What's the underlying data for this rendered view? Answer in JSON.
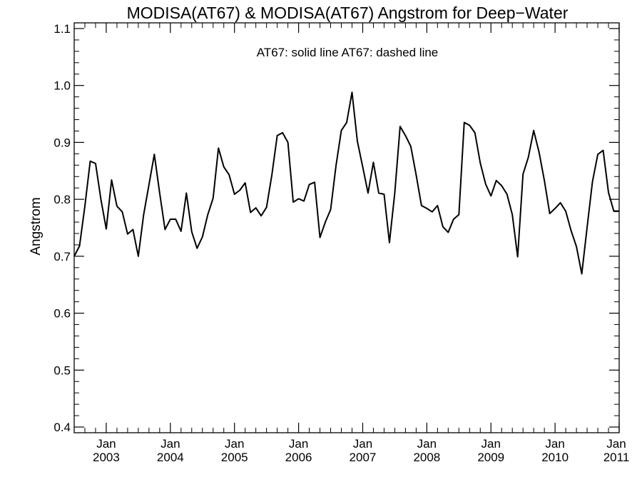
{
  "chart_data": {
    "type": "line",
    "title": "MODISA(AT67) & MODISA(AT67)  Angstrom for Deep−Water",
    "annotation": "AT67: solid line   AT67: dashed line",
    "xlabel": "",
    "ylabel": "Angstrom",
    "ylim": [
      0.39,
      1.11
    ],
    "yticks": [
      "0.4",
      "0.5",
      "0.6",
      "0.7",
      "0.8",
      "0.9",
      "1.0",
      "1.1"
    ],
    "x_start": "2002-07",
    "x_end": "2011-01",
    "xticks": [
      {
        "month": "Jan",
        "year": "2003",
        "date": "2003-01"
      },
      {
        "month": "Jan",
        "year": "2004",
        "date": "2004-01"
      },
      {
        "month": "Jan",
        "year": "2005",
        "date": "2005-01"
      },
      {
        "month": "Jan",
        "year": "2006",
        "date": "2006-01"
      },
      {
        "month": "Jan",
        "year": "2007",
        "date": "2007-01"
      },
      {
        "month": "Jan",
        "year": "2008",
        "date": "2008-01"
      },
      {
        "month": "Jan",
        "year": "2009",
        "date": "2009-01"
      },
      {
        "month": "Jan",
        "year": "2010",
        "date": "2010-01"
      },
      {
        "month": "Jan",
        "year": "2011",
        "date": "2011-01"
      }
    ],
    "grid": false,
    "line_color": "#000000",
    "series": [
      {
        "style": "solid",
        "x": [
          "2002-07",
          "2002-08",
          "2002-09",
          "2002-10",
          "2002-11",
          "2002-12",
          "2003-01",
          "2003-02",
          "2003-03",
          "2003-04",
          "2003-05",
          "2003-06",
          "2003-07",
          "2003-08",
          "2003-09",
          "2003-10",
          "2003-11",
          "2003-12",
          "2004-01",
          "2004-02",
          "2004-03",
          "2004-04",
          "2004-05",
          "2004-06",
          "2004-07",
          "2004-08",
          "2004-09",
          "2004-10",
          "2004-11",
          "2004-12",
          "2005-01",
          "2005-02",
          "2005-03",
          "2005-04",
          "2005-05",
          "2005-06",
          "2005-07",
          "2005-08",
          "2005-09",
          "2005-10",
          "2005-11",
          "2005-12",
          "2006-01",
          "2006-02",
          "2006-03",
          "2006-04",
          "2006-05",
          "2006-06",
          "2006-07",
          "2006-08",
          "2006-09",
          "2006-10",
          "2006-11",
          "2006-12",
          "2007-01",
          "2007-02",
          "2007-03",
          "2007-04",
          "2007-05",
          "2007-06",
          "2007-07",
          "2007-08",
          "2007-09",
          "2007-10",
          "2007-11",
          "2007-12",
          "2008-01",
          "2008-02",
          "2008-03",
          "2008-04",
          "2008-05",
          "2008-06",
          "2008-07",
          "2008-08",
          "2008-09",
          "2008-10",
          "2008-11",
          "2008-12",
          "2009-01",
          "2009-02",
          "2009-03",
          "2009-04",
          "2009-05",
          "2009-06",
          "2009-07",
          "2009-08",
          "2009-09",
          "2009-10",
          "2009-11",
          "2009-12",
          "2010-01",
          "2010-02",
          "2010-03",
          "2010-04",
          "2010-05",
          "2010-06",
          "2010-07",
          "2010-08",
          "2010-09",
          "2010-10",
          "2010-11",
          "2010-12",
          "2011-01"
        ],
        "y": [
          0.7,
          0.718,
          0.788,
          0.867,
          0.863,
          0.8,
          0.748,
          0.834,
          0.788,
          0.778,
          0.739,
          0.747,
          0.7,
          0.773,
          0.826,
          0.879,
          0.811,
          0.747,
          0.765,
          0.765,
          0.744,
          0.811,
          0.743,
          0.714,
          0.734,
          0.773,
          0.802,
          0.89,
          0.857,
          0.843,
          0.809,
          0.816,
          0.829,
          0.777,
          0.785,
          0.771,
          0.786,
          0.843,
          0.912,
          0.917,
          0.9,
          0.795,
          0.801,
          0.797,
          0.826,
          0.83,
          0.733,
          0.76,
          0.782,
          0.859,
          0.921,
          0.935,
          0.988,
          0.902,
          0.857,
          0.811,
          0.865,
          0.811,
          0.809,
          0.724,
          0.811,
          0.928,
          0.912,
          0.893,
          0.843,
          0.789,
          0.784,
          0.778,
          0.789,
          0.752,
          0.742,
          0.765,
          0.773,
          0.935,
          0.93,
          0.917,
          0.864,
          0.827,
          0.806,
          0.833,
          0.824,
          0.809,
          0.773,
          0.699,
          0.844,
          0.874,
          0.921,
          0.883,
          0.833,
          0.775,
          0.784,
          0.794,
          0.779,
          0.745,
          0.717,
          0.669,
          0.751,
          0.831,
          0.879,
          0.886,
          0.812,
          0.779,
          0.779
        ]
      }
    ]
  }
}
